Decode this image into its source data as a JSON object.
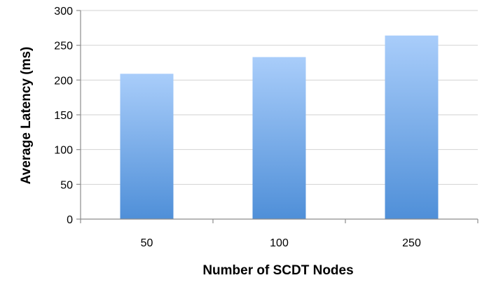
{
  "chart_data": {
    "type": "bar",
    "title": "",
    "xlabel": "Number of SCDT Nodes",
    "ylabel": "Average Latency (ms)",
    "categories": [
      "50",
      "100",
      "250"
    ],
    "values": [
      209,
      233,
      264
    ],
    "ylim": [
      0,
      300
    ],
    "yticks": [
      "0",
      "50",
      "100",
      "150",
      "200",
      "250",
      "300"
    ],
    "grid": true,
    "legend": "none",
    "colors": {
      "bar_top": "#a9cdfa",
      "bar_bottom": "#4f8fd8",
      "grid": "#d2d2d2",
      "axis": "#8c8c8c"
    }
  }
}
